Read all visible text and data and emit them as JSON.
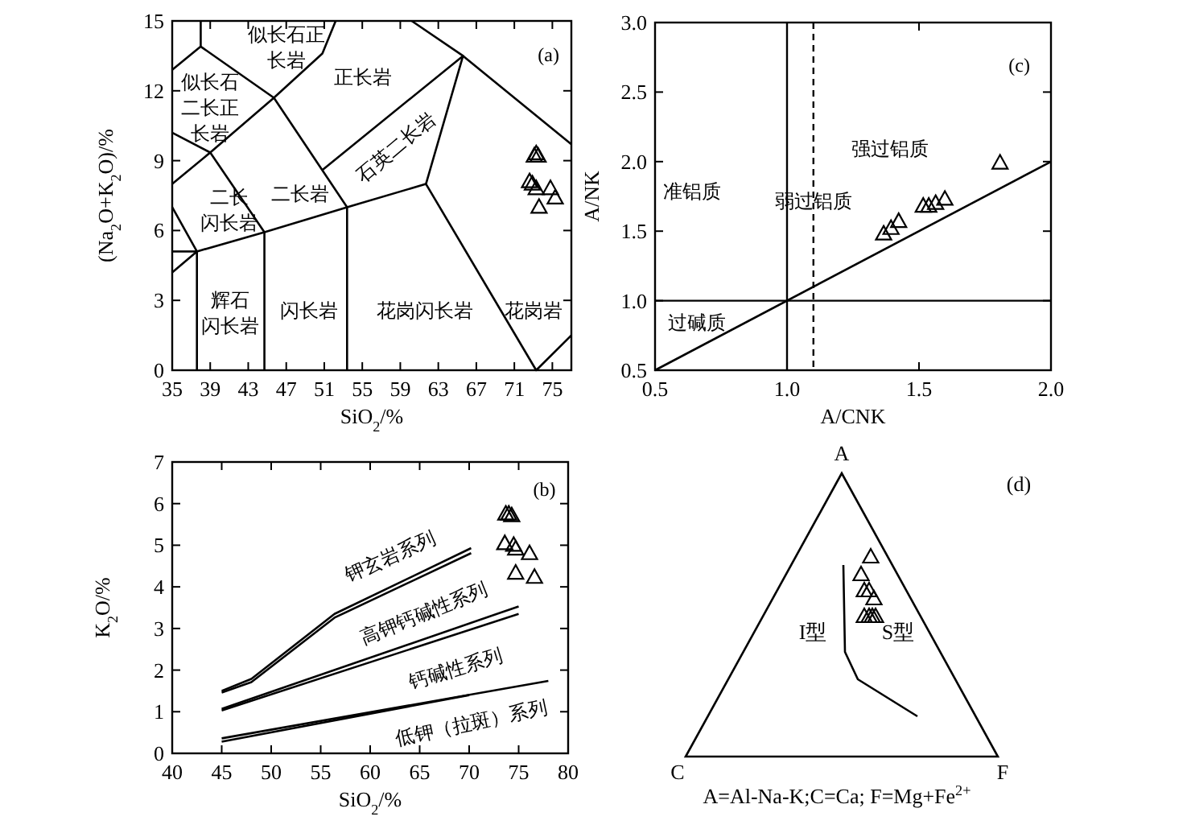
{
  "chart_data": [
    {
      "type": "scatter",
      "xlabel": "SiO$_{2}$/%",
      "ylabel": "(Na$_{2}$O+K$_{2}$O)/%",
      "xlim": [
        35,
        77
      ],
      "ylim": [
        0,
        15
      ],
      "xticks": [
        35,
        39,
        43,
        47,
        51,
        55,
        59,
        63,
        67,
        71,
        75
      ],
      "yticks": [
        0,
        3,
        6,
        9,
        12,
        15
      ],
      "series": [
        {
          "type": "scatter",
          "marker": "triangle",
          "color": "#000000",
          "x": [
            73.1,
            73.5,
            73.3,
            72.6,
            72.9,
            73.3,
            74.8,
            75.3,
            73.6
          ],
          "values": [
            9.2,
            9.2,
            9.3,
            8.1,
            8.0,
            7.8,
            7.8,
            7.4,
            7.0
          ]
        },
        {
          "type": "line",
          "color": "#000000",
          "x": [
            35,
            38,
            45.7,
            50.8,
            52.2
          ],
          "values": [
            12.9,
            13.9,
            11.7,
            13.6,
            15
          ]
        },
        {
          "type": "line",
          "color": "#000000",
          "x": [
            38,
            38
          ],
          "values": [
            15,
            13.9
          ]
        },
        {
          "type": "line",
          "color": "#000000",
          "x": [
            35,
            39,
            45.7,
            53.4,
            53.4
          ],
          "values": [
            10.2,
            9.35,
            11.7,
            7.0,
            0
          ]
        },
        {
          "type": "line",
          "color": "#000000",
          "x": [
            35,
            39,
            44.7,
            44.7
          ],
          "values": [
            8.0,
            9.35,
            5.93,
            0
          ]
        },
        {
          "type": "line",
          "color": "#000000",
          "x": [
            35,
            37.6,
            44.7,
            53.4,
            61.7,
            73.3,
            77
          ],
          "values": [
            7.0,
            5.1,
            5.93,
            7.0,
            8.0,
            0,
            1.5
          ]
        },
        {
          "type": "line",
          "color": "#000000",
          "x": [
            35,
            37.6
          ],
          "values": [
            5.1,
            5.1
          ]
        },
        {
          "type": "line",
          "color": "#000000",
          "x": [
            35,
            37.6,
            37.6
          ],
          "values": [
            4.2,
            5.1,
            0
          ]
        },
        {
          "type": "line",
          "color": "#000000",
          "x": [
            50.8,
            65.6,
            61.7
          ],
          "values": [
            8.6,
            13.5,
            8.0
          ]
        },
        {
          "type": "line",
          "color": "#000000",
          "x": [
            60.2,
            65.6,
            77
          ],
          "values": [
            15,
            13.5,
            9.7
          ]
        }
      ],
      "annotations": [
        "似长石正长岩",
        "似长石二长正长岩",
        "正长岩",
        "石英二长岩",
        "二长闪长岩",
        "二长岩",
        "辉石闪长岩",
        "闪长岩",
        "花岗闪长岩",
        "花岗岩",
        "(a)"
      ]
    },
    {
      "type": "scatter",
      "xlabel": "A/CNK",
      "ylabel": "A/NK",
      "xlim": [
        0.5,
        2.0
      ],
      "ylim": [
        0.5,
        3.0
      ],
      "xticks": [
        0.5,
        {
          "value": 1,
          "label": "1.0"
        },
        1.5,
        {
          "value": 2,
          "label": "2.0"
        }
      ],
      "yticks": [
        0.5,
        {
          "value": 1,
          "label": "1.0"
        },
        1.5,
        {
          "value": 2,
          "label": "2.0"
        },
        2.5,
        {
          "value": 3,
          "label": "3.0"
        }
      ],
      "series": [
        {
          "type": "scatter",
          "marker": "triangle",
          "color": "#000000",
          "x": [
            1.366,
            1.394,
            1.423,
            1.516,
            1.537,
            1.563,
            1.598,
            1.807
          ],
          "values": [
            1.48,
            1.52,
            1.57,
            1.68,
            1.68,
            1.7,
            1.73,
            1.99
          ]
        },
        {
          "type": "line",
          "color": "#000000",
          "x": [
            0.5,
            2.0
          ],
          "values": [
            0.5,
            2.0
          ]
        }
      ],
      "ref_lines": [
        {
          "axis": "x",
          "value": 1.0,
          "line_style": "solid"
        },
        {
          "axis": "x",
          "value": 1.1,
          "line_style": "dashed"
        },
        {
          "axis": "y",
          "value": 1.0,
          "line_style": "solid"
        }
      ],
      "annotations": [
        "准铝质",
        "弱过铝质",
        "强过铝质",
        "过碱质",
        "(c)"
      ]
    },
    {
      "type": "scatter",
      "xlabel": "SiO$_{2}$/%",
      "ylabel": "K$_{2}$O/%",
      "xlim": [
        40,
        80
      ],
      "ylim": [
        0,
        7
      ],
      "xticks": [
        40,
        45,
        50,
        55,
        60,
        65,
        70,
        75,
        80
      ],
      "yticks": [
        0,
        1,
        2,
        3,
        4,
        5,
        6,
        7
      ],
      "series": [
        {
          "type": "scatter",
          "marker": "triangle",
          "color": "#000000",
          "x": [
            73.7,
            74.0,
            74.3,
            73.6,
            74.5,
            74.7,
            76.1,
            74.7,
            76.6
          ],
          "values": [
            5.75,
            5.75,
            5.71,
            5.04,
            5.0,
            4.91,
            4.8,
            4.33,
            4.23
          ]
        },
        {
          "type": "line",
          "color": "#000000",
          "x": [
            45,
            48,
            56.4,
            70.2
          ],
          "values": [
            1.5,
            1.79,
            3.35,
            4.93
          ]
        },
        {
          "type": "line",
          "color": "#000000",
          "x": [
            45,
            48,
            56.4,
            70.2
          ],
          "values": [
            1.46,
            1.71,
            3.26,
            4.81
          ]
        },
        {
          "type": "line",
          "color": "#000000",
          "x": [
            45,
            75
          ],
          "values": [
            1.07,
            3.53
          ]
        },
        {
          "type": "line",
          "color": "#000000",
          "x": [
            45,
            75
          ],
          "values": [
            1.03,
            3.35
          ]
        },
        {
          "type": "line",
          "color": "#000000",
          "x": [
            45,
            78
          ],
          "values": [
            0.36,
            1.74
          ]
        },
        {
          "type": "line",
          "color": "#000000",
          "x": [
            45,
            70
          ],
          "values": [
            0.28,
            1.4
          ]
        }
      ],
      "annotations": [
        "钾玄岩系列",
        "高钾钙碱性系列",
        "钙碱性系列",
        "低钾（拉斑）系列",
        "(b)"
      ]
    },
    {
      "type": "other",
      "annotations": [
        "A",
        "C",
        "F",
        "I型",
        "S型",
        "(d)",
        "A=Al-Na-K;C=Ca; F=Mg+Fe$^{2+}$"
      ]
    }
  ]
}
